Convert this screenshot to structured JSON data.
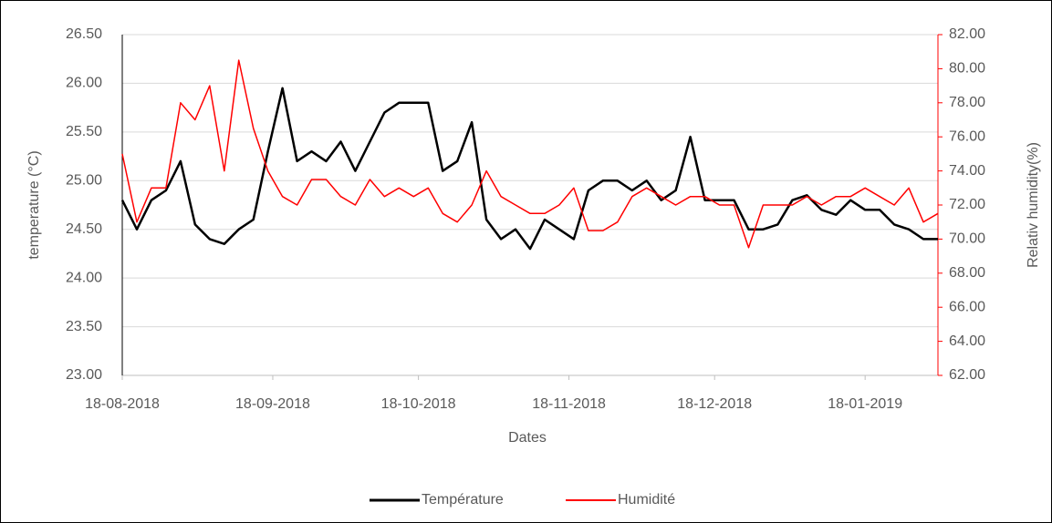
{
  "chart_data": {
    "type": "line",
    "xlabel": "Dates",
    "ylabel": "temperature (°C)",
    "y2label": "Relativ humidity(%)",
    "x": [
      "18-08-2018",
      "21-08-2018",
      "24-08-2018",
      "27-08-2018",
      "30-08-2018",
      "02-09-2018",
      "05-09-2018",
      "08-09-2018",
      "11-09-2018",
      "14-09-2018",
      "17-09-2018",
      "20-09-2018",
      "23-09-2018",
      "26-09-2018",
      "29-09-2018",
      "02-10-2018",
      "05-10-2018",
      "08-10-2018",
      "11-10-2018",
      "14-10-2018",
      "17-10-2018",
      "20-10-2018",
      "23-10-2018",
      "26-10-2018",
      "29-10-2018",
      "01-11-2018",
      "04-11-2018",
      "07-11-2018",
      "10-11-2018",
      "13-11-2018",
      "16-11-2018",
      "19-11-2018",
      "22-11-2018",
      "25-11-2018",
      "28-11-2018",
      "01-12-2018",
      "04-12-2018",
      "07-12-2018",
      "10-12-2018",
      "13-12-2018",
      "16-12-2018",
      "19-12-2018",
      "22-12-2018",
      "25-12-2018",
      "28-12-2018",
      "31-12-2018",
      "03-01-2019",
      "06-01-2019",
      "09-01-2019",
      "12-01-2019",
      "15-01-2019",
      "18-01-2019",
      "21-01-2019",
      "24-01-2019",
      "27-01-2019",
      "30-01-2019",
      "02-02-2019"
    ],
    "series": [
      {
        "name": "Température",
        "color": "#000000",
        "axis": "y",
        "values": [
          24.8,
          24.5,
          24.8,
          24.9,
          25.2,
          24.55,
          24.4,
          24.35,
          24.5,
          24.6,
          25.3,
          25.95,
          25.2,
          25.3,
          25.2,
          25.4,
          25.1,
          25.4,
          25.7,
          25.8,
          25.8,
          25.8,
          25.1,
          25.2,
          25.6,
          24.6,
          24.4,
          24.5,
          24.3,
          24.6,
          24.5,
          24.4,
          24.9,
          25.0,
          25.0,
          24.9,
          25.0,
          24.8,
          24.9,
          25.45,
          24.8,
          24.8,
          24.8,
          24.5,
          24.5,
          24.55,
          24.8,
          24.85,
          24.7,
          24.65,
          24.8,
          24.7,
          24.7,
          24.55,
          24.5,
          24.4,
          24.4
        ]
      },
      {
        "name": "Humidité",
        "color": "#ff0000",
        "axis": "y2",
        "values": [
          75,
          71,
          73,
          73,
          78,
          77,
          79,
          74,
          80.5,
          76.5,
          74,
          72.5,
          72,
          73.5,
          73.5,
          72.5,
          72,
          73.5,
          72.5,
          73,
          72.5,
          73,
          71.5,
          71,
          72,
          74,
          72.5,
          72,
          71.5,
          71.5,
          72,
          73,
          70.5,
          70.5,
          71,
          72.5,
          73,
          72.5,
          72,
          72.5,
          72.5,
          72,
          72,
          69.5,
          72,
          72,
          72,
          72.5,
          72,
          72.5,
          72.5,
          73,
          72.5,
          72,
          73,
          71,
          71.5
        ]
      }
    ],
    "xlim": [
      "18-08-2018",
      "02-02-2019"
    ],
    "xticks": [
      "18-08-2018",
      "18-09-2018",
      "18-10-2018",
      "18-11-2018",
      "18-12-2018",
      "18-01-2019"
    ],
    "ylim": [
      23,
      26.5
    ],
    "yticks": [
      {
        "value": 23,
        "label": "23.00"
      },
      {
        "value": 23.5,
        "label": "23.50"
      },
      {
        "value": 24,
        "label": "24.00"
      },
      {
        "value": 24.5,
        "label": "24.50"
      },
      {
        "value": 25,
        "label": "25.00"
      },
      {
        "value": 25.5,
        "label": "25.50"
      },
      {
        "value": 26,
        "label": "26.00"
      },
      {
        "value": 26.5,
        "label": "26.50"
      }
    ],
    "y2lim": [
      62,
      82
    ],
    "y2ticks": [
      {
        "value": 62,
        "label": "62.00"
      },
      {
        "value": 64,
        "label": "64.00"
      },
      {
        "value": 66,
        "label": "66.00"
      },
      {
        "value": 68,
        "label": "68.00"
      },
      {
        "value": 70,
        "label": "70.00"
      },
      {
        "value": 72,
        "label": "72.00"
      },
      {
        "value": 74,
        "label": "74.00"
      },
      {
        "value": 76,
        "label": "76.00"
      },
      {
        "value": 78,
        "label": "78.00"
      },
      {
        "value": 80,
        "label": "80.00"
      },
      {
        "value": 82,
        "label": "82.00"
      }
    ],
    "grid": true,
    "legend": "bottom"
  }
}
